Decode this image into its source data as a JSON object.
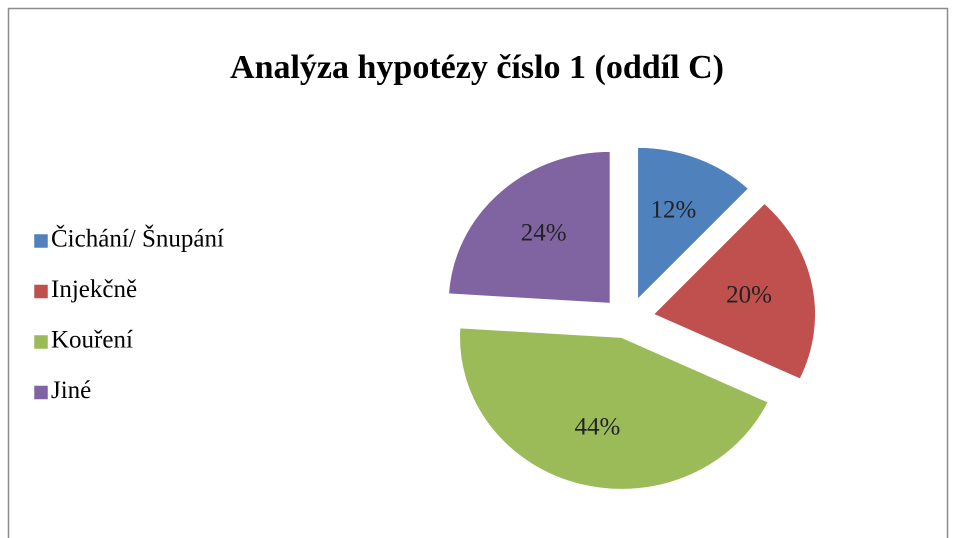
{
  "chart_data": {
    "type": "pie",
    "title": "Analýza hypotézy číslo 1 (oddíl C)",
    "categories": [
      "Čichání/ Šnupání",
      "Injekčně",
      "Kouření",
      "Jiné"
    ],
    "values": [
      12,
      20,
      44,
      24
    ],
    "value_labels": [
      "12%",
      "20%",
      "44%",
      "24%"
    ],
    "colors": [
      "#4f81bd",
      "#c0504d",
      "#9bbb59",
      "#8064a2"
    ],
    "legend": "left"
  }
}
